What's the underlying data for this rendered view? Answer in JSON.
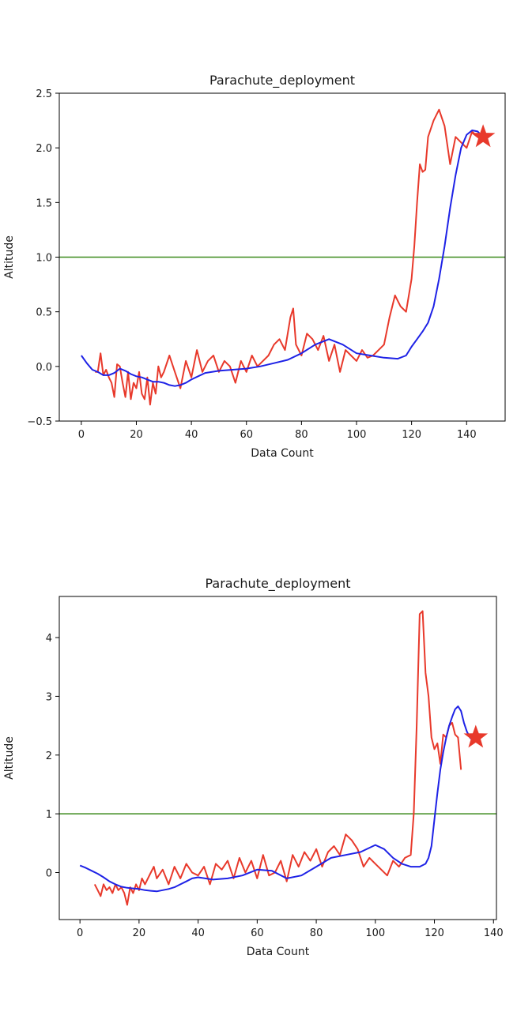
{
  "chart_data": [
    {
      "type": "line",
      "title": "Parachute_deployment",
      "xlabel": "Data Count",
      "ylabel": "Altitude",
      "xlim": [
        -8,
        154
      ],
      "ylim": [
        -0.5,
        2.5
      ],
      "x_ticks": [
        0,
        20,
        40,
        60,
        80,
        100,
        120,
        140
      ],
      "y_ticks": [
        -0.5,
        0.0,
        0.5,
        1.0,
        1.5,
        2.0,
        2.5
      ],
      "x_tick_labels": [
        "0",
        "20",
        "40",
        "60",
        "80",
        "100",
        "120",
        "140"
      ],
      "y_tick_labels": [
        "−0.5",
        "0.0",
        "0.5",
        "1.0",
        "1.5",
        "2.0",
        "2.5"
      ],
      "threshold": 1.0,
      "series": [
        {
          "color": "#e8392b",
          "x": [
            5,
            6,
            7,
            8,
            9,
            10,
            11,
            12,
            13,
            14,
            15,
            16,
            17,
            18,
            19,
            20,
            21,
            22,
            23,
            24,
            25,
            26,
            27,
            28,
            29,
            30,
            32,
            34,
            36,
            38,
            40,
            42,
            44,
            46,
            48,
            50,
            52,
            54,
            56,
            58,
            60,
            62,
            64,
            66,
            68,
            70,
            72,
            74,
            76,
            77,
            78,
            80,
            82,
            84,
            86,
            88,
            90,
            92,
            94,
            96,
            98,
            100,
            102,
            104,
            106,
            108,
            110,
            112,
            114,
            116,
            118,
            120,
            121,
            122,
            123,
            124,
            125,
            126,
            128,
            130,
            132,
            134,
            136,
            138,
            140,
            142,
            144,
            146
          ],
          "y": [
            -0.05,
            -0.05,
            0.12,
            -0.08,
            -0.03,
            -0.1,
            -0.15,
            -0.28,
            0.02,
            0.0,
            -0.15,
            -0.28,
            -0.05,
            -0.3,
            -0.15,
            -0.2,
            -0.05,
            -0.25,
            -0.3,
            -0.1,
            -0.35,
            -0.15,
            -0.25,
            0.0,
            -0.1,
            -0.05,
            0.1,
            -0.05,
            -0.2,
            0.05,
            -0.1,
            0.15,
            -0.05,
            0.05,
            0.1,
            -0.05,
            0.05,
            0.0,
            -0.15,
            0.05,
            -0.05,
            0.1,
            0.0,
            0.05,
            0.1,
            0.2,
            0.25,
            0.15,
            0.45,
            0.53,
            0.2,
            0.1,
            0.3,
            0.25,
            0.15,
            0.28,
            0.05,
            0.2,
            -0.05,
            0.15,
            0.1,
            0.05,
            0.15,
            0.08,
            0.1,
            0.15,
            0.2,
            0.45,
            0.65,
            0.55,
            0.5,
            0.8,
            1.1,
            1.5,
            1.85,
            1.78,
            1.8,
            2.1,
            2.25,
            2.35,
            2.2,
            1.85,
            2.1,
            2.05,
            2.0,
            2.15,
            2.1,
            2.1
          ]
        },
        {
          "color": "#1e22e6",
          "x": [
            0,
            2,
            4,
            6,
            8,
            10,
            12,
            14,
            16,
            18,
            20,
            22,
            24,
            26,
            28,
            30,
            32,
            34,
            36,
            38,
            40,
            45,
            50,
            55,
            60,
            65,
            70,
            75,
            80,
            85,
            90,
            95,
            100,
            105,
            110,
            115,
            118,
            120,
            122,
            124,
            126,
            128,
            130,
            132,
            134,
            136,
            138,
            140,
            142,
            144,
            146
          ],
          "y": [
            0.1,
            0.03,
            -0.03,
            -0.05,
            -0.08,
            -0.08,
            -0.06,
            -0.02,
            -0.04,
            -0.07,
            -0.09,
            -0.1,
            -0.12,
            -0.14,
            -0.14,
            -0.15,
            -0.17,
            -0.18,
            -0.17,
            -0.15,
            -0.12,
            -0.06,
            -0.04,
            -0.03,
            -0.02,
            0.0,
            0.03,
            0.06,
            0.12,
            0.2,
            0.25,
            0.2,
            0.12,
            0.1,
            0.08,
            0.07,
            0.1,
            0.18,
            0.25,
            0.32,
            0.4,
            0.55,
            0.8,
            1.1,
            1.45,
            1.75,
            2.0,
            2.12,
            2.16,
            2.15,
            2.1
          ]
        }
      ],
      "marker": {
        "x": 146,
        "y": 2.1,
        "color": "#e8392b",
        "shape": "star"
      },
      "grid": false,
      "legend": "none"
    },
    {
      "type": "line",
      "title": "Parachute_deployment",
      "xlabel": "Data Count",
      "ylabel": "Altitude",
      "xlim": [
        -7,
        141
      ],
      "ylim": [
        -0.8,
        4.7
      ],
      "x_ticks": [
        0,
        20,
        40,
        60,
        80,
        100,
        120,
        140
      ],
      "y_ticks": [
        0,
        1,
        2,
        3,
        4
      ],
      "x_tick_labels": [
        "0",
        "20",
        "40",
        "60",
        "80",
        "100",
        "120",
        "140"
      ],
      "y_tick_labels": [
        "0",
        "1",
        "2",
        "3",
        "4"
      ],
      "threshold": 1.0,
      "series": [
        {
          "color": "#e8392b",
          "x": [
            5,
            6,
            7,
            8,
            9,
            10,
            11,
            12,
            13,
            14,
            15,
            16,
            17,
            18,
            19,
            20,
            21,
            22,
            23,
            24,
            25,
            26,
            28,
            30,
            32,
            34,
            36,
            38,
            40,
            42,
            44,
            46,
            48,
            50,
            52,
            54,
            56,
            58,
            60,
            62,
            64,
            66,
            68,
            70,
            72,
            74,
            76,
            78,
            80,
            82,
            84,
            86,
            88,
            90,
            92,
            94,
            96,
            98,
            100,
            102,
            104,
            106,
            108,
            110,
            112,
            113,
            114,
            115,
            116,
            117,
            118,
            119,
            120,
            121,
            122,
            123,
            124,
            125,
            126,
            127,
            128,
            129
          ],
          "y": [
            -0.2,
            -0.3,
            -0.4,
            -0.2,
            -0.3,
            -0.25,
            -0.35,
            -0.2,
            -0.3,
            -0.25,
            -0.35,
            -0.55,
            -0.25,
            -0.35,
            -0.2,
            -0.3,
            -0.1,
            -0.2,
            -0.1,
            0.0,
            0.1,
            -0.1,
            0.05,
            -0.2,
            0.1,
            -0.1,
            0.15,
            0.0,
            -0.05,
            0.1,
            -0.2,
            0.15,
            0.05,
            0.2,
            -0.1,
            0.25,
            0.0,
            0.2,
            -0.1,
            0.3,
            -0.05,
            0.0,
            0.2,
            -0.15,
            0.3,
            0.1,
            0.35,
            0.2,
            0.4,
            0.1,
            0.35,
            0.45,
            0.3,
            0.65,
            0.55,
            0.4,
            0.1,
            0.25,
            0.15,
            0.05,
            -0.05,
            0.2,
            0.1,
            0.25,
            0.3,
            1.0,
            2.5,
            4.4,
            4.45,
            3.4,
            3.0,
            2.3,
            2.1,
            2.2,
            1.85,
            2.35,
            2.3,
            2.5,
            2.55,
            2.35,
            2.3,
            1.75
          ]
        },
        {
          "color": "#1e22e6",
          "x": [
            0,
            2,
            4,
            6,
            8,
            10,
            12,
            14,
            16,
            18,
            20,
            22,
            24,
            26,
            28,
            30,
            32,
            34,
            36,
            38,
            40,
            45,
            50,
            55,
            60,
            65,
            70,
            75,
            80,
            85,
            90,
            95,
            100,
            103,
            106,
            109,
            112,
            115,
            117,
            118,
            119,
            120,
            121,
            122,
            123,
            124,
            125,
            126,
            127,
            128,
            129,
            130,
            131,
            132,
            133,
            134
          ],
          "y": [
            0.12,
            0.08,
            0.03,
            -0.02,
            -0.08,
            -0.15,
            -0.2,
            -0.24,
            -0.26,
            -0.27,
            -0.28,
            -0.3,
            -0.31,
            -0.32,
            -0.3,
            -0.28,
            -0.25,
            -0.2,
            -0.15,
            -0.1,
            -0.08,
            -0.12,
            -0.1,
            -0.05,
            0.05,
            0.03,
            -0.1,
            -0.05,
            0.1,
            0.25,
            0.3,
            0.35,
            0.47,
            0.4,
            0.25,
            0.15,
            0.1,
            0.1,
            0.15,
            0.25,
            0.45,
            0.9,
            1.35,
            1.75,
            2.05,
            2.3,
            2.5,
            2.65,
            2.78,
            2.83,
            2.75,
            2.55,
            2.4,
            2.3,
            2.25,
            2.25
          ]
        }
      ],
      "marker": {
        "x": 134,
        "y": 2.3,
        "color": "#e8392b",
        "shape": "star"
      },
      "grid": false,
      "legend": "none"
    }
  ]
}
